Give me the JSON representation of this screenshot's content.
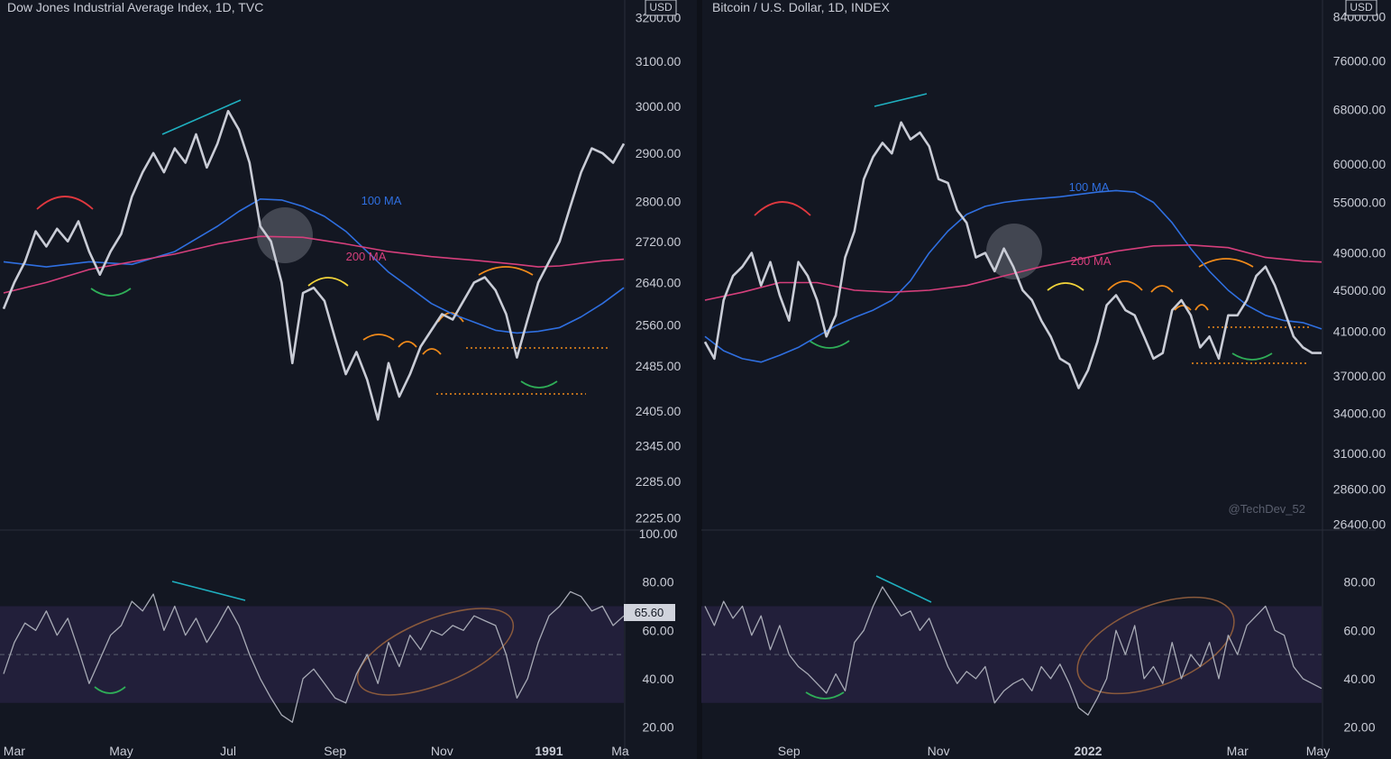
{
  "colors": {
    "background": "#131722",
    "price": "#c9ccd6",
    "ma100": "#2f6fe0",
    "ma200": "#d63f7c",
    "rsi_band": "#221f3a",
    "axis_text": "#c9ccd6",
    "divergence": "#1fb0c0",
    "arc_red": "#e0383f",
    "arc_yellow": "#f2d43a",
    "arc_orange": "#f08a1a",
    "arc_green": "#2fae58",
    "ellipse": "#8a5a3c"
  },
  "chart_data": [
    {
      "type": "line",
      "title": "Dow Jones Industrial Average Index, 1D, TVC",
      "currency": "USD",
      "x_ticks": [
        "Mar",
        "May",
        "Jul",
        "Sep",
        "Nov",
        "1991",
        "Ma"
      ],
      "y_ticks": [
        "3200.00",
        "3100.00",
        "3000.00",
        "2900.00",
        "2800.00",
        "2720.00",
        "2640.00",
        "2560.00",
        "2485.00",
        "2405.00",
        "2345.00",
        "2285.00",
        "2225.00"
      ],
      "y_tick_values": [
        3200,
        3100,
        3000,
        2900,
        2800,
        2720,
        2640,
        2560,
        2485,
        2405,
        2345,
        2285,
        2225
      ],
      "ylim": [
        2210,
        3220
      ],
      "log_scale": true,
      "x_range": [
        0,
        29
      ],
      "x_tick_positions": [
        0.5,
        5.5,
        10.5,
        15.5,
        20.5,
        25.5,
        29.5
      ],
      "series": [
        {
          "name": "Price",
          "x": [
            0,
            0.5,
            1,
            1.5,
            2,
            2.5,
            3,
            3.5,
            4,
            4.5,
            5,
            5.5,
            6,
            6.5,
            7,
            7.5,
            8,
            8.5,
            9,
            9.5,
            10,
            10.5,
            11,
            11.5,
            12,
            12.5,
            13,
            13.5,
            14,
            14.5,
            15,
            15.5,
            16,
            16.5,
            17,
            17.5,
            18,
            18.5,
            19,
            19.5,
            20,
            20.5,
            21,
            21.5,
            22,
            22.5,
            23,
            23.5,
            24,
            24.5,
            25,
            25.5,
            26,
            26.5,
            27,
            27.5,
            28,
            28.5,
            29
          ],
          "y": [
            2590,
            2640,
            2680,
            2740,
            2710,
            2745,
            2720,
            2760,
            2700,
            2655,
            2700,
            2735,
            2810,
            2860,
            2900,
            2860,
            2910,
            2880,
            2940,
            2870,
            2920,
            2990,
            2950,
            2880,
            2750,
            2720,
            2640,
            2490,
            2620,
            2630,
            2605,
            2535,
            2470,
            2510,
            2460,
            2390,
            2490,
            2430,
            2470,
            2520,
            2550,
            2580,
            2570,
            2605,
            2640,
            2650,
            2625,
            2580,
            2500,
            2570,
            2640,
            2680,
            2720,
            2790,
            2860,
            2910,
            2900,
            2880,
            2920
          ]
        },
        {
          "name": "100 MA",
          "x": [
            0,
            2,
            4,
            6,
            8,
            10,
            11,
            12,
            13,
            14,
            15,
            16,
            17,
            18,
            19,
            20,
            21,
            22,
            23,
            24,
            25,
            26,
            27,
            28,
            29
          ],
          "y": [
            2680,
            2670,
            2680,
            2675,
            2700,
            2750,
            2780,
            2805,
            2803,
            2790,
            2770,
            2740,
            2700,
            2660,
            2630,
            2600,
            2580,
            2565,
            2550,
            2545,
            2548,
            2555,
            2575,
            2600,
            2630
          ]
        },
        {
          "name": "200 MA",
          "x": [
            0,
            2,
            4,
            6,
            8,
            10,
            12,
            14,
            16,
            18,
            20,
            22,
            24,
            25,
            26,
            27,
            28,
            29
          ],
          "y": [
            2620,
            2640,
            2665,
            2680,
            2695,
            2715,
            2730,
            2728,
            2715,
            2700,
            2690,
            2683,
            2675,
            2670,
            2672,
            2677,
            2682,
            2685
          ]
        }
      ],
      "annotations": [
        "100 MA",
        "200 MA"
      ],
      "rsi": {
        "y_ticks": [
          "100.00",
          "80.00",
          "60.00",
          "40.00",
          "20.00"
        ],
        "y_tick_values": [
          100,
          80,
          60,
          40,
          20
        ],
        "ylim": [
          15,
          100
        ],
        "band": [
          30,
          70
        ],
        "midline": 50,
        "current_label": "65.60",
        "current_value": 65.6,
        "x": [
          0,
          0.5,
          1,
          1.5,
          2,
          2.5,
          3,
          3.5,
          4,
          4.5,
          5,
          5.5,
          6,
          6.5,
          7,
          7.5,
          8,
          8.5,
          9,
          9.5,
          10,
          10.5,
          11,
          11.5,
          12,
          12.5,
          13,
          13.5,
          14,
          14.5,
          15,
          15.5,
          16,
          16.5,
          17,
          17.5,
          18,
          18.5,
          19,
          19.5,
          20,
          20.5,
          21,
          21.5,
          22,
          22.5,
          23,
          23.5,
          24,
          24.5,
          25,
          25.5,
          26,
          26.5,
          27,
          27.5,
          28,
          28.5,
          29
        ],
        "y": [
          42,
          55,
          63,
          60,
          68,
          58,
          65,
          52,
          38,
          48,
          58,
          62,
          72,
          68,
          75,
          60,
          70,
          58,
          65,
          55,
          62,
          70,
          62,
          50,
          40,
          32,
          25,
          22,
          40,
          44,
          38,
          32,
          30,
          42,
          50,
          38,
          55,
          45,
          58,
          52,
          60,
          58,
          62,
          60,
          66,
          64,
          62,
          50,
          32,
          40,
          55,
          66,
          70,
          76,
          74,
          68,
          70,
          62,
          66
        ]
      }
    },
    {
      "type": "line",
      "title": "Bitcoin / U.S. Dollar, 1D, INDEX",
      "currency": "USD",
      "x_ticks": [
        "Sep",
        "Nov",
        "2022",
        "Mar",
        "May"
      ],
      "y_ticks": [
        "84000.00",
        "76000.00",
        "68000.00",
        "60000.00",
        "55000.00",
        "49000.00",
        "45000.00",
        "41000.00",
        "37000.00",
        "34000.00",
        "31000.00",
        "28600.00",
        "26400.00"
      ],
      "y_tick_values": [
        84000,
        76000,
        68000,
        60000,
        55000,
        49000,
        45000,
        41000,
        37000,
        34000,
        31000,
        28600,
        26400
      ],
      "ylim": [
        26200,
        85500
      ],
      "log_scale": true,
      "x_range": [
        0,
        33
      ],
      "x_tick_positions": [
        4.5,
        12.5,
        20.5,
        28.5,
        36.5
      ],
      "series": [
        {
          "name": "Price",
          "x": [
            0,
            0.5,
            1,
            1.5,
            2,
            2.5,
            3,
            3.5,
            4,
            4.5,
            5,
            5.5,
            6,
            6.5,
            7,
            7.5,
            8,
            8.5,
            9,
            9.5,
            10,
            10.5,
            11,
            11.5,
            12,
            12.5,
            13,
            13.5,
            14,
            14.5,
            15,
            15.5,
            16,
            16.5,
            17,
            17.5,
            18,
            18.5,
            19,
            19.5,
            20,
            20.5,
            21,
            21.5,
            22,
            22.5,
            23,
            23.5,
            24,
            24.5,
            25,
            25.5,
            26,
            26.5,
            27,
            27.5,
            28,
            28.5,
            29,
            29.5,
            30,
            30.5,
            31,
            31.5,
            32,
            32.5,
            33
          ],
          "y": [
            40000,
            38500,
            44000,
            46500,
            47500,
            49000,
            45500,
            48000,
            44500,
            42000,
            48000,
            46500,
            44000,
            40500,
            42500,
            48500,
            51500,
            58000,
            61000,
            63000,
            61500,
            66000,
            63500,
            64500,
            62500,
            58000,
            57500,
            54000,
            52500,
            48500,
            49000,
            47000,
            49500,
            47500,
            45000,
            44000,
            42000,
            40500,
            38500,
            38000,
            36000,
            37500,
            40000,
            43500,
            44500,
            43000,
            42500,
            40500,
            38500,
            39000,
            43000,
            44000,
            42500,
            39500,
            40500,
            38500,
            42500,
            42500,
            44000,
            46500,
            47500,
            45500,
            43000,
            40500,
            39500,
            39000,
            39000
          ]
        },
        {
          "name": "100 MA",
          "x": [
            0,
            1,
            2,
            3,
            4,
            5,
            6,
            7,
            8,
            9,
            10,
            11,
            12,
            13,
            14,
            15,
            16,
            17,
            18,
            19,
            20,
            21,
            22,
            23,
            24,
            25,
            26,
            27,
            28,
            29,
            30,
            31,
            32,
            33
          ],
          "y": [
            40500,
            39200,
            38500,
            38200,
            38800,
            39500,
            40500,
            41500,
            42300,
            43000,
            44000,
            46000,
            49000,
            51500,
            53500,
            54500,
            55000,
            55300,
            55500,
            55700,
            56000,
            56300,
            56500,
            56300,
            55000,
            52500,
            49500,
            47000,
            45000,
            43500,
            42500,
            42000,
            41800,
            41200
          ]
        },
        {
          "name": "200 MA",
          "x": [
            0,
            2,
            4,
            6,
            8,
            10,
            12,
            14,
            16,
            18,
            20,
            22,
            24,
            26,
            28,
            30,
            32,
            33
          ],
          "y": [
            44000,
            44800,
            45800,
            45800,
            45000,
            44800,
            45000,
            45500,
            46500,
            47500,
            48300,
            49200,
            49800,
            49900,
            49600,
            48500,
            48100,
            48000
          ]
        }
      ],
      "annotations": [
        "100 MA",
        "200 MA"
      ],
      "watermark": "@TechDev_52",
      "rsi": {
        "y_ticks": [
          "80.00",
          "60.00",
          "40.00",
          "20.00"
        ],
        "y_tick_values": [
          80,
          60,
          40,
          20
        ],
        "ylim": [
          15,
          100
        ],
        "band": [
          30,
          70
        ],
        "midline": 50,
        "x": [
          0,
          0.5,
          1,
          1.5,
          2,
          2.5,
          3,
          3.5,
          4,
          4.5,
          5,
          5.5,
          6,
          6.5,
          7,
          7.5,
          8,
          8.5,
          9,
          9.5,
          10,
          10.5,
          11,
          11.5,
          12,
          12.5,
          13,
          13.5,
          14,
          14.5,
          15,
          15.5,
          16,
          16.5,
          17,
          17.5,
          18,
          18.5,
          19,
          19.5,
          20,
          20.5,
          21,
          21.5,
          22,
          22.5,
          23,
          23.5,
          24,
          24.5,
          25,
          25.5,
          26,
          26.5,
          27,
          27.5,
          28,
          28.5,
          29,
          29.5,
          30,
          30.5,
          31,
          31.5,
          32,
          32.5,
          33
        ],
        "y": [
          70,
          62,
          72,
          65,
          70,
          58,
          66,
          52,
          62,
          50,
          45,
          42,
          38,
          34,
          42,
          35,
          55,
          60,
          70,
          78,
          72,
          66,
          68,
          60,
          65,
          55,
          45,
          38,
          43,
          40,
          45,
          30,
          35,
          38,
          40,
          35,
          45,
          40,
          46,
          38,
          28,
          25,
          32,
          40,
          60,
          50,
          62,
          40,
          45,
          38,
          55,
          40,
          50,
          45,
          55,
          40,
          58,
          50,
          62,
          66,
          70,
          60,
          58,
          45,
          40,
          38,
          36
        ]
      }
    }
  ]
}
